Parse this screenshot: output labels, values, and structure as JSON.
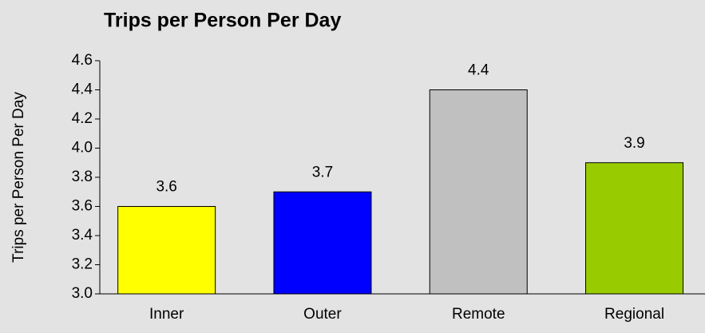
{
  "chart_data": {
    "type": "bar",
    "title": "Trips per Person Per Day",
    "y_label": "Trips per Person Per Day",
    "categories": [
      "Inner",
      "Outer",
      "Remote",
      "Regional"
    ],
    "values": [
      3.6,
      3.7,
      4.4,
      3.9
    ],
    "colors": [
      "#ffff00",
      "#0000ff",
      "#c0c0c0",
      "#99cc00"
    ],
    "ylim": [
      3,
      4.6
    ],
    "yticks": [
      {
        "value": 3,
        "label": "3.0"
      },
      3.2,
      3.4,
      3.6,
      3.8,
      {
        "value": 4,
        "label": "4.0"
      },
      4.2,
      4.4,
      4.6
    ],
    "grid": false
  }
}
